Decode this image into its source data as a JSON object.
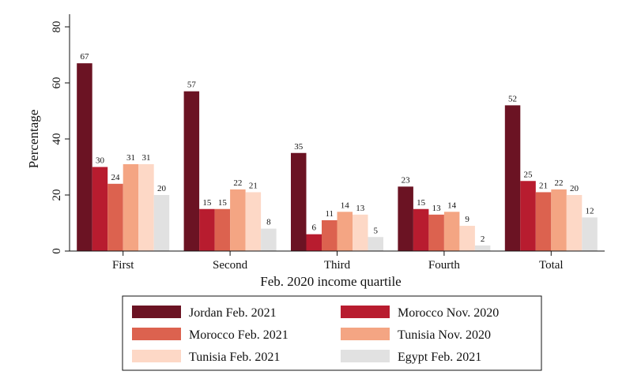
{
  "chart_data": {
    "type": "bar",
    "title": "",
    "xlabel": "Feb. 2020 income quartile",
    "ylabel": "Percentage",
    "ylim": [
      0,
      80
    ],
    "yticks": [
      0,
      20,
      40,
      60,
      80
    ],
    "grid": false,
    "legend_position": "bottom",
    "categories": [
      "First",
      "Second",
      "Third",
      "Fourth",
      "Total"
    ],
    "series": [
      {
        "name": "Jordan Feb. 2021",
        "color": "#6b1323",
        "values": [
          67,
          57,
          35,
          23,
          52
        ]
      },
      {
        "name": "Morocco Nov. 2020",
        "color": "#b81c2f",
        "values": [
          30,
          15,
          6,
          15,
          25
        ]
      },
      {
        "name": "Morocco Feb. 2021",
        "color": "#dc624f",
        "values": [
          24,
          15,
          11,
          13,
          21
        ]
      },
      {
        "name": "Tunisia Nov. 2020",
        "color": "#f4a583",
        "values": [
          31,
          22,
          14,
          14,
          22
        ]
      },
      {
        "name": "Tunisia Feb. 2021",
        "color": "#fdd8c6",
        "values": [
          31,
          21,
          13,
          9,
          20
        ]
      },
      {
        "name": "Egypt Feb. 2021",
        "color": "#e1e1e1",
        "values": [
          20,
          8,
          5,
          2,
          12
        ]
      }
    ]
  }
}
